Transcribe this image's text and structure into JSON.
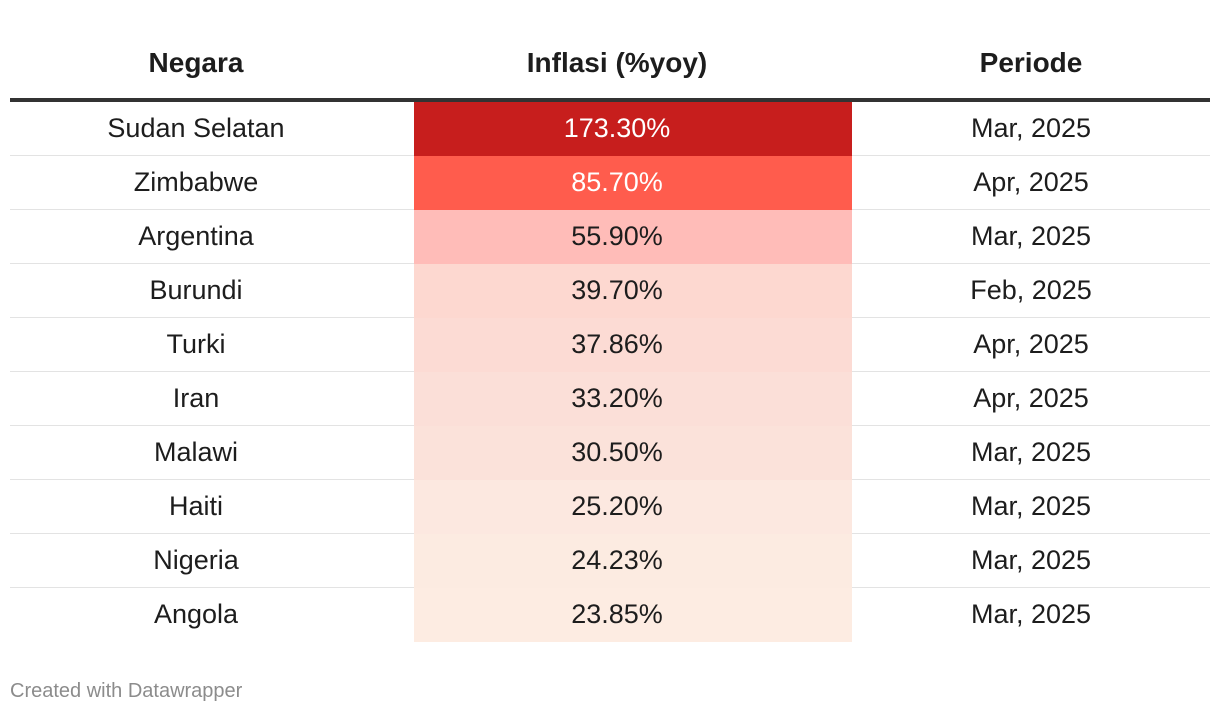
{
  "chart_data": {
    "type": "table",
    "columns": [
      "Negara",
      "Inflasi (%yoy)",
      "Periode"
    ],
    "rows": [
      {
        "country": "Sudan Selatan",
        "inflation": "173.30%",
        "value": 173.3,
        "period": "Mar, 2025",
        "fill": "#c71e1d",
        "text_color": "#ffffff"
      },
      {
        "country": "Zimbabwe",
        "inflation": "85.70%",
        "value": 85.7,
        "period": "Apr, 2025",
        "fill": "#ff5c4d",
        "text_color": "#ffffff"
      },
      {
        "country": "Argentina",
        "inflation": "55.90%",
        "value": 55.9,
        "period": "Mar, 2025",
        "fill": "#ffbcb8",
        "text_color": "#1d1d1d"
      },
      {
        "country": "Burundi",
        "inflation": "39.70%",
        "value": 39.7,
        "period": "Feb, 2025",
        "fill": "#fdd8d0",
        "text_color": "#1d1d1d"
      },
      {
        "country": "Turki",
        "inflation": "37.86%",
        "value": 37.86,
        "period": "Apr, 2025",
        "fill": "#fcdbd4",
        "text_color": "#1d1d1d"
      },
      {
        "country": "Iran",
        "inflation": "33.20%",
        "value": 33.2,
        "period": "Apr, 2025",
        "fill": "#fbdfd8",
        "text_color": "#1d1d1d"
      },
      {
        "country": "Malawi",
        "inflation": "30.50%",
        "value": 30.5,
        "period": "Mar, 2025",
        "fill": "#fbe2da",
        "text_color": "#1d1d1d"
      },
      {
        "country": "Haiti",
        "inflation": "25.20%",
        "value": 25.2,
        "period": "Mar, 2025",
        "fill": "#fce8e0",
        "text_color": "#1d1d1d"
      },
      {
        "country": "Nigeria",
        "inflation": "24.23%",
        "value": 24.23,
        "period": "Mar, 2025",
        "fill": "#fcebe1",
        "text_color": "#1d1d1d"
      },
      {
        "country": "Angola",
        "inflation": "23.85%",
        "value": 23.85,
        "period": "Mar, 2025",
        "fill": "#fdece2",
        "text_color": "#1d1d1d"
      }
    ]
  },
  "footer": {
    "credit": "Created with Datawrapper"
  }
}
